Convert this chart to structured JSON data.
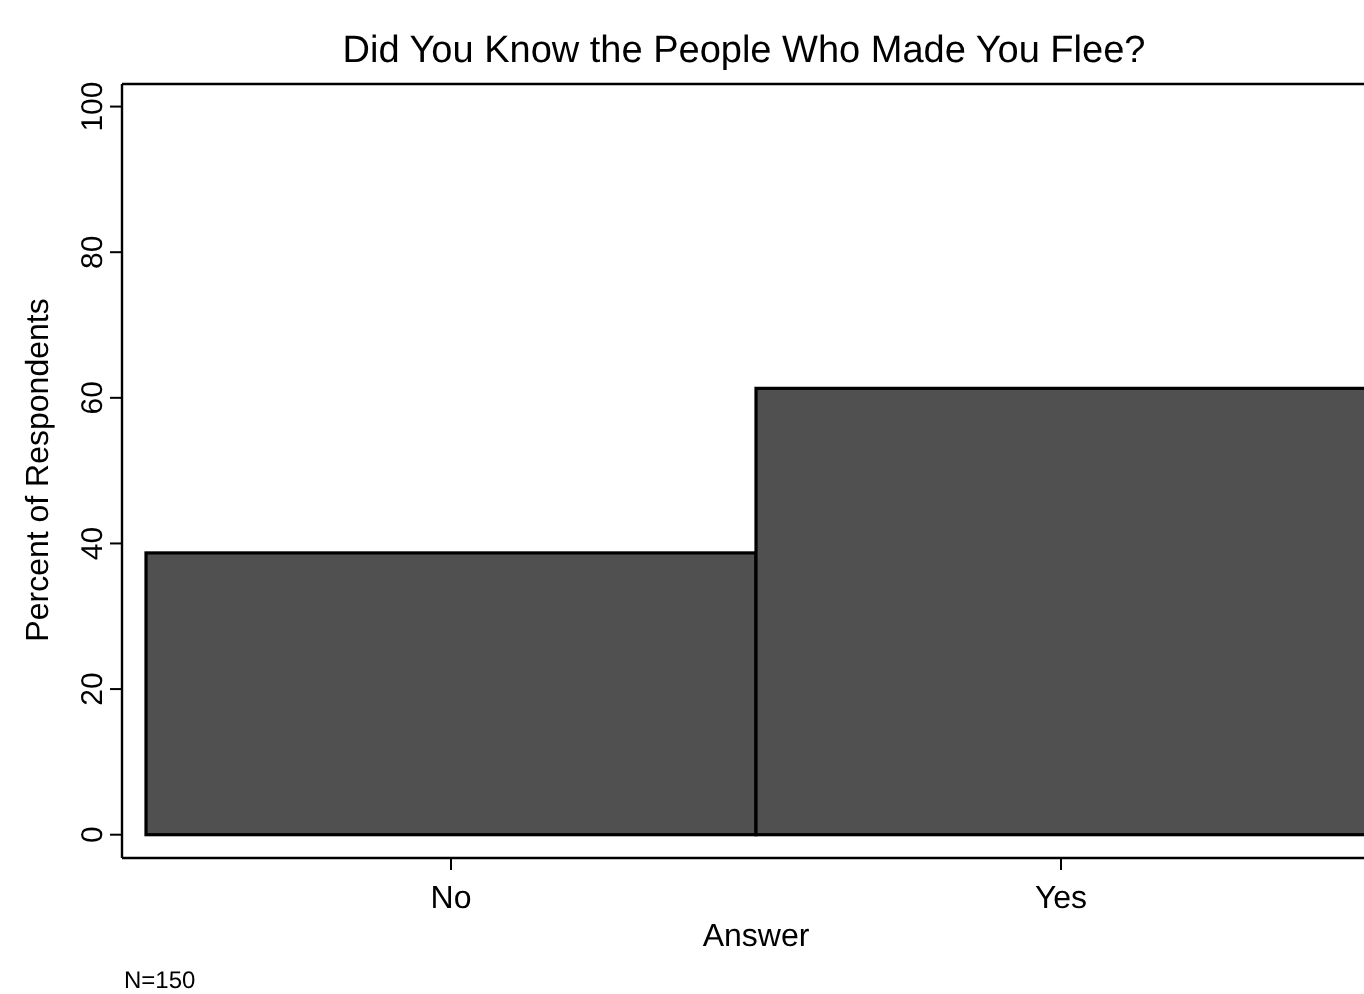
{
  "chart_data": {
    "type": "bar",
    "title": "Did You Know the People Who Made You Flee?",
    "xlabel": "Answer",
    "ylabel": "Percent of Respondents",
    "categories": [
      "No",
      "Yes"
    ],
    "values": [
      38.7,
      61.3
    ],
    "color": "#505050",
    "ylim": [
      -3.2,
      103.1
    ],
    "yticks": [
      0,
      20,
      40,
      60,
      80,
      100
    ],
    "grid": false,
    "annotations": [
      "N=150"
    ]
  }
}
